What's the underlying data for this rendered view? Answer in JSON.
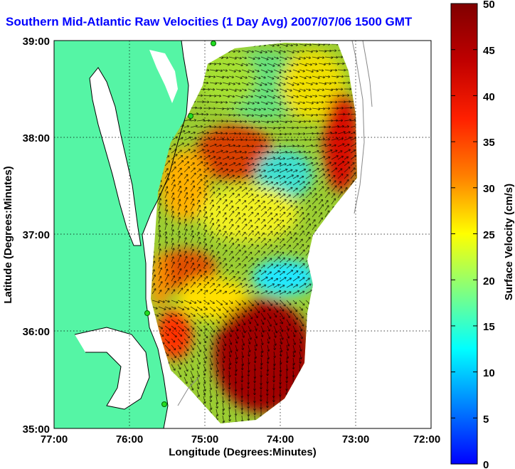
{
  "title": "Southern Mid-Atlantic Raw Velocities (1 Day Avg) 2007/07/06 1500 GMT",
  "xlabel": "Longitude (Degrees:Minutes)",
  "ylabel": "Latitude (Degrees:Minutes)",
  "xticks": [
    "77:00",
    "76:00",
    "75:00",
    "74:00",
    "73:00",
    "72:00"
  ],
  "yticks": [
    "39:00",
    "38:00",
    "37:00",
    "36:00",
    "35:00"
  ],
  "colorbar": {
    "label": "Surface Velocity (cm/s)",
    "ticks": [
      "50",
      "45",
      "40",
      "35",
      "30",
      "25",
      "20",
      "15",
      "10",
      "5",
      "0"
    ],
    "min": 0,
    "max": 50
  },
  "colors": {
    "land": "#55f5a5",
    "water": "#ffffff",
    "title": "#0000ff"
  }
}
